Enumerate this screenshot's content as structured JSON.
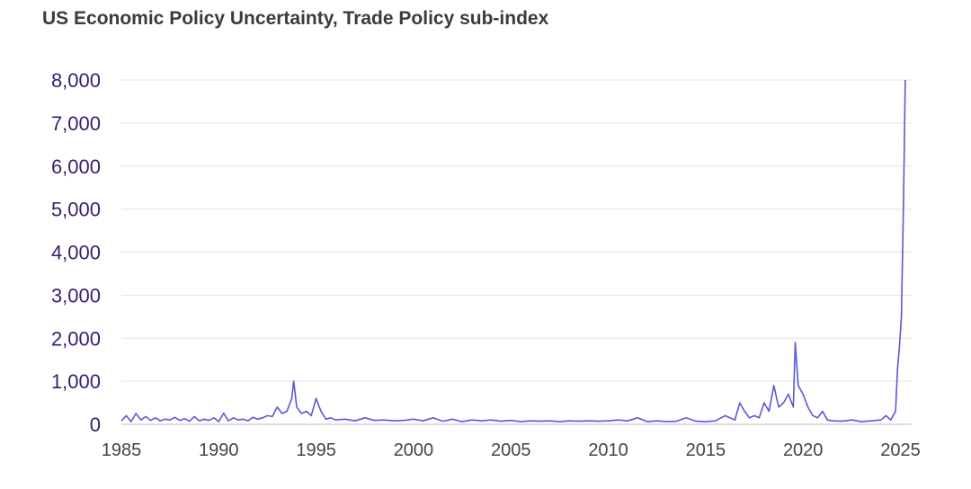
{
  "chart_data": {
    "type": "line",
    "title": "US Economic Policy Uncertainty, Trade Policy sub-index",
    "xlabel": "",
    "ylabel": "",
    "xlim": [
      1985,
      2025.3
    ],
    "ylim": [
      0,
      8000
    ],
    "grid": true,
    "legend": "none",
    "line_color": "#5b57d9",
    "yticks": [
      0,
      1000,
      2000,
      3000,
      4000,
      5000,
      6000,
      7000,
      8000
    ],
    "ytick_labels": [
      "0",
      "1,000",
      "2,000",
      "3,000",
      "4,000",
      "5,000",
      "6,000",
      "7,000",
      "8,000"
    ],
    "xticks": [
      1985,
      1990,
      1995,
      2000,
      2005,
      2010,
      2015,
      2020,
      2025
    ],
    "xtick_labels": [
      "1985",
      "1990",
      "1995",
      "2000",
      "2005",
      "2010",
      "2015",
      "2020",
      "2025"
    ],
    "series": [
      {
        "x": [
          1985.0,
          1985.25,
          1985.5,
          1985.75,
          1986.0,
          1986.25,
          1986.5,
          1986.75,
          1987.0,
          1987.25,
          1987.5,
          1987.75,
          1988.0,
          1988.25,
          1988.5,
          1988.75,
          1989.0,
          1989.25,
          1989.5,
          1989.75,
          1990.0,
          1990.25,
          1990.5,
          1990.75,
          1991.0,
          1991.25,
          1991.5,
          1991.75,
          1992.0,
          1992.25,
          1992.5,
          1992.75,
          1993.0,
          1993.25,
          1993.5,
          1993.75,
          1993.85,
          1994.0,
          1994.25,
          1994.5,
          1994.75,
          1995.0,
          1995.25,
          1995.5,
          1995.75,
          1996.0,
          1996.5,
          1997.0,
          1997.5,
          1998.0,
          1998.5,
          1999.0,
          1999.5,
          2000.0,
          2000.5,
          2001.0,
          2001.5,
          2002.0,
          2002.5,
          2003.0,
          2003.5,
          2004.0,
          2004.5,
          2005.0,
          2005.5,
          2006.0,
          2006.5,
          2007.0,
          2007.5,
          2008.0,
          2008.5,
          2009.0,
          2009.5,
          2010.0,
          2010.5,
          2011.0,
          2011.5,
          2012.0,
          2012.5,
          2013.0,
          2013.5,
          2014.0,
          2014.5,
          2015.0,
          2015.5,
          2016.0,
          2016.5,
          2016.75,
          2017.0,
          2017.25,
          2017.5,
          2017.75,
          2018.0,
          2018.25,
          2018.5,
          2018.75,
          2019.0,
          2019.25,
          2019.5,
          2019.6,
          2019.75,
          2020.0,
          2020.25,
          2020.5,
          2020.75,
          2021.0,
          2021.25,
          2021.5,
          2022.0,
          2022.5,
          2023.0,
          2023.5,
          2024.0,
          2024.25,
          2024.5,
          2024.75,
          2024.85,
          2024.95,
          2025.05,
          2025.15,
          2025.25
        ],
        "values": [
          80,
          200,
          60,
          250,
          100,
          180,
          90,
          150,
          80,
          120,
          100,
          160,
          90,
          130,
          70,
          180,
          80,
          120,
          90,
          150,
          60,
          260,
          80,
          150,
          100,
          120,
          80,
          160,
          120,
          150,
          200,
          180,
          400,
          250,
          300,
          600,
          1000,
          400,
          250,
          300,
          200,
          600,
          300,
          120,
          150,
          100,
          120,
          80,
          150,
          90,
          100,
          80,
          90,
          120,
          80,
          150,
          70,
          120,
          60,
          100,
          80,
          100,
          70,
          90,
          60,
          80,
          70,
          80,
          60,
          80,
          70,
          80,
          70,
          80,
          100,
          80,
          150,
          60,
          80,
          60,
          70,
          150,
          70,
          60,
          80,
          200,
          100,
          500,
          300,
          150,
          200,
          150,
          500,
          300,
          900,
          400,
          500,
          700,
          400,
          1900,
          900,
          700,
          400,
          200,
          150,
          300,
          100,
          80,
          70,
          100,
          60,
          80,
          100,
          200,
          100,
          300,
          1300,
          1800,
          2500,
          5000,
          8000
        ]
      }
    ]
  }
}
